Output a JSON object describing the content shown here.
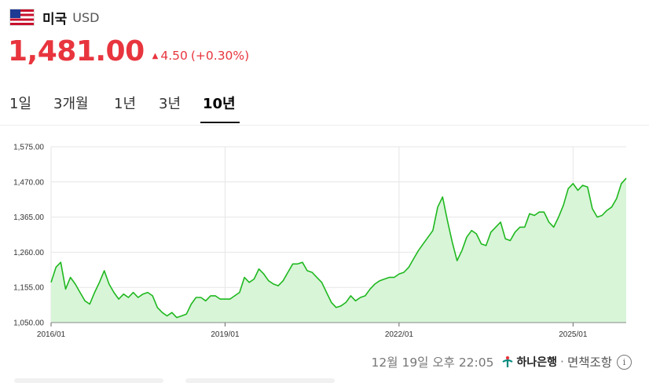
{
  "header": {
    "country": "미국",
    "currency": "USD",
    "flag_icon": "us-flag-icon"
  },
  "quote": {
    "price": "1,481.00",
    "change": "4.50",
    "change_pct": "(+0.30%)",
    "direction": "up",
    "color": "#e8353e"
  },
  "tabs": [
    {
      "label": "1일",
      "active": false
    },
    {
      "label": "3개월",
      "active": false
    },
    {
      "label": "1년",
      "active": false
    },
    {
      "label": "3년",
      "active": false
    },
    {
      "label": "10년",
      "active": true
    }
  ],
  "chart_data": {
    "type": "area",
    "line_color": "#1fb81f",
    "fill_color": "#d8f5d8",
    "ylim": [
      1050,
      1575
    ],
    "y_ticks": [
      "1,575.00",
      "1,470.00",
      "1,365.00",
      "1,260.00",
      "1,155.00",
      "1,050.00"
    ],
    "y_tick_values": [
      1575,
      1470,
      1365,
      1260,
      1155,
      1050
    ],
    "x_ticks": [
      "2016/01",
      "2019/01",
      "2022/01",
      "2025/01"
    ],
    "x_tick_values": [
      "2016-01",
      "2019-01",
      "2022-01",
      "2025-01"
    ],
    "grid": true,
    "points": [
      [
        "2016-01",
        1170
      ],
      [
        "2016-02",
        1215
      ],
      [
        "2016-03",
        1230
      ],
      [
        "2016-04",
        1150
      ],
      [
        "2016-05",
        1185
      ],
      [
        "2016-06",
        1165
      ],
      [
        "2016-07",
        1140
      ],
      [
        "2016-08",
        1115
      ],
      [
        "2016-09",
        1105
      ],
      [
        "2016-10",
        1140
      ],
      [
        "2016-11",
        1170
      ],
      [
        "2016-12",
        1205
      ],
      [
        "2017-01",
        1165
      ],
      [
        "2017-02",
        1140
      ],
      [
        "2017-03",
        1120
      ],
      [
        "2017-04",
        1135
      ],
      [
        "2017-05",
        1125
      ],
      [
        "2017-06",
        1140
      ],
      [
        "2017-07",
        1125
      ],
      [
        "2017-08",
        1135
      ],
      [
        "2017-09",
        1140
      ],
      [
        "2017-10",
        1130
      ],
      [
        "2017-11",
        1095
      ],
      [
        "2017-12",
        1080
      ],
      [
        "2018-01",
        1070
      ],
      [
        "2018-02",
        1080
      ],
      [
        "2018-03",
        1065
      ],
      [
        "2018-04",
        1070
      ],
      [
        "2018-05",
        1075
      ],
      [
        "2018-06",
        1105
      ],
      [
        "2018-07",
        1125
      ],
      [
        "2018-08",
        1125
      ],
      [
        "2018-09",
        1115
      ],
      [
        "2018-10",
        1130
      ],
      [
        "2018-11",
        1130
      ],
      [
        "2018-12",
        1120
      ],
      [
        "2019-01",
        1120
      ],
      [
        "2019-02",
        1120
      ],
      [
        "2019-03",
        1130
      ],
      [
        "2019-04",
        1140
      ],
      [
        "2019-05",
        1185
      ],
      [
        "2019-06",
        1170
      ],
      [
        "2019-07",
        1180
      ],
      [
        "2019-08",
        1210
      ],
      [
        "2019-09",
        1195
      ],
      [
        "2019-10",
        1175
      ],
      [
        "2019-11",
        1165
      ],
      [
        "2019-12",
        1160
      ],
      [
        "2020-01",
        1175
      ],
      [
        "2020-02",
        1200
      ],
      [
        "2020-03",
        1225
      ],
      [
        "2020-04",
        1225
      ],
      [
        "2020-05",
        1230
      ],
      [
        "2020-06",
        1205
      ],
      [
        "2020-07",
        1200
      ],
      [
        "2020-08",
        1185
      ],
      [
        "2020-09",
        1170
      ],
      [
        "2020-10",
        1140
      ],
      [
        "2020-11",
        1110
      ],
      [
        "2020-12",
        1095
      ],
      [
        "2021-01",
        1100
      ],
      [
        "2021-02",
        1110
      ],
      [
        "2021-03",
        1130
      ],
      [
        "2021-04",
        1115
      ],
      [
        "2021-05",
        1125
      ],
      [
        "2021-06",
        1130
      ],
      [
        "2021-07",
        1150
      ],
      [
        "2021-08",
        1165
      ],
      [
        "2021-09",
        1175
      ],
      [
        "2021-10",
        1180
      ],
      [
        "2021-11",
        1185
      ],
      [
        "2021-12",
        1185
      ],
      [
        "2022-01",
        1195
      ],
      [
        "2022-02",
        1200
      ],
      [
        "2022-03",
        1215
      ],
      [
        "2022-04",
        1240
      ],
      [
        "2022-05",
        1265
      ],
      [
        "2022-06",
        1285
      ],
      [
        "2022-07",
        1305
      ],
      [
        "2022-08",
        1325
      ],
      [
        "2022-09",
        1395
      ],
      [
        "2022-10",
        1425
      ],
      [
        "2022-11",
        1355
      ],
      [
        "2022-12",
        1290
      ],
      [
        "2023-01",
        1235
      ],
      [
        "2023-02",
        1265
      ],
      [
        "2023-03",
        1305
      ],
      [
        "2023-04",
        1325
      ],
      [
        "2023-05",
        1315
      ],
      [
        "2023-06",
        1285
      ],
      [
        "2023-07",
        1280
      ],
      [
        "2023-08",
        1320
      ],
      [
        "2023-09",
        1335
      ],
      [
        "2023-10",
        1350
      ],
      [
        "2023-11",
        1300
      ],
      [
        "2023-12",
        1295
      ],
      [
        "2024-01",
        1320
      ],
      [
        "2024-02",
        1335
      ],
      [
        "2024-03",
        1335
      ],
      [
        "2024-04",
        1375
      ],
      [
        "2024-05",
        1370
      ],
      [
        "2024-06",
        1380
      ],
      [
        "2024-07",
        1380
      ],
      [
        "2024-08",
        1350
      ],
      [
        "2024-09",
        1335
      ],
      [
        "2024-10",
        1365
      ],
      [
        "2024-11",
        1400
      ],
      [
        "2024-12",
        1450
      ],
      [
        "2025-01",
        1465
      ],
      [
        "2025-02",
        1445
      ],
      [
        "2025-03",
        1460
      ],
      [
        "2025-04",
        1455
      ],
      [
        "2025-05",
        1390
      ],
      [
        "2025-06",
        1365
      ],
      [
        "2025-07",
        1370
      ],
      [
        "2025-08",
        1385
      ],
      [
        "2025-09",
        1395
      ],
      [
        "2025-10",
        1420
      ],
      [
        "2025-11",
        1465
      ],
      [
        "2025-12",
        1481
      ]
    ]
  },
  "footer": {
    "timestamp": "12월 19일 오후 22:05",
    "bank": "하나은행",
    "separator": "·",
    "disclaimer": "면책조항",
    "info_icon": "info-icon"
  }
}
